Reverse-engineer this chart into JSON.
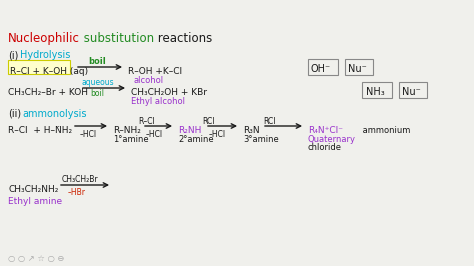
{
  "bg_color": "#f0f0ec",
  "text_color": "#1a1a1a",
  "purple": "#9932CC",
  "cyan": "#00aacc",
  "green": "#228B22",
  "red": "#cc0000",
  "dark_red": "#cc2200",
  "gray": "#888888",
  "yellow_box_edge": "#cccc00",
  "yellow_box_fill": "#ffffcc",
  "title": [
    {
      "t": "Nucleophilic",
      "c": "#cc0000"
    },
    {
      "t": " substitution",
      "c": "#228B22"
    },
    {
      "t": " reactions",
      "c": "#1a1a1a"
    }
  ]
}
